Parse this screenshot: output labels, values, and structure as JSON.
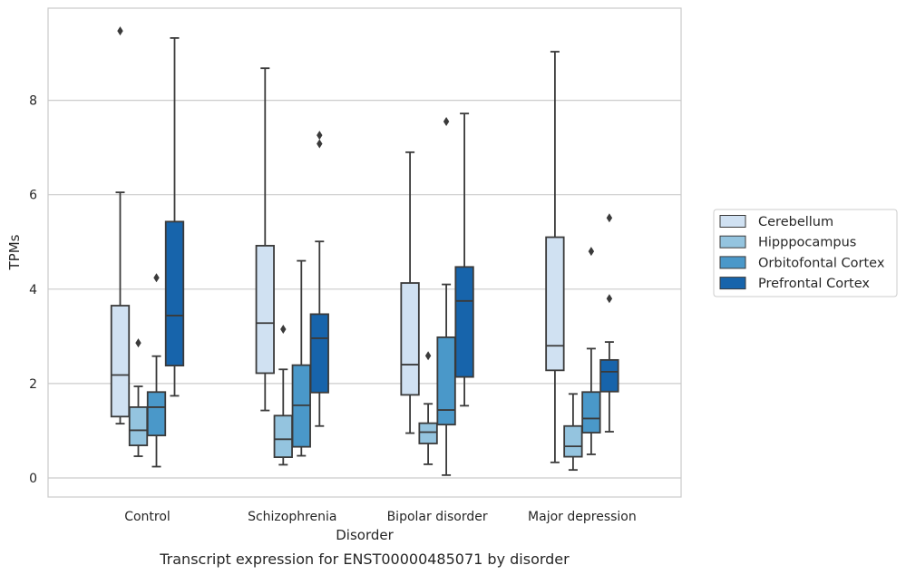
{
  "chart_data": {
    "type": "box",
    "caption": "Transcript expression for ENST00000485071 by disorder",
    "xlabel": "Disorder",
    "ylabel": "TPMs",
    "ylim": [
      -0.4,
      9.9
    ],
    "yticks": [
      0,
      2,
      4,
      6,
      8
    ],
    "grid": "horizontal",
    "legend_position": "right",
    "categories": [
      "Control",
      "Schizophrenia",
      "Bipolar disorder",
      "Major depression"
    ],
    "series": [
      {
        "name": "Cerebellum",
        "color": "#d0e1f2",
        "boxes": [
          {
            "whislo": 1.15,
            "q1": 1.3,
            "med": 2.18,
            "q3": 3.65,
            "whishi": 6.05,
            "fliers": [
              9.47
            ]
          },
          {
            "whislo": 1.43,
            "q1": 2.22,
            "med": 3.28,
            "q3": 4.92,
            "whishi": 8.68,
            "fliers": []
          },
          {
            "whislo": 0.95,
            "q1": 1.76,
            "med": 2.4,
            "q3": 4.13,
            "whishi": 6.9,
            "fliers": []
          },
          {
            "whislo": 0.33,
            "q1": 2.28,
            "med": 2.8,
            "q3": 5.1,
            "whishi": 9.03,
            "fliers": []
          }
        ]
      },
      {
        "name": "Hipppocampus",
        "color": "#94c4df",
        "boxes": [
          {
            "whislo": 0.46,
            "q1": 0.69,
            "med": 1.01,
            "q3": 1.5,
            "whishi": 1.94,
            "fliers": [
              2.86
            ]
          },
          {
            "whislo": 0.28,
            "q1": 0.44,
            "med": 0.82,
            "q3": 1.32,
            "whishi": 2.3,
            "fliers": [
              3.15
            ]
          },
          {
            "whislo": 0.29,
            "q1": 0.73,
            "med": 0.97,
            "q3": 1.16,
            "whishi": 1.57,
            "fliers": [
              2.59
            ]
          },
          {
            "whislo": 0.17,
            "q1": 0.45,
            "med": 0.67,
            "q3": 1.1,
            "whishi": 1.78,
            "fliers": []
          }
        ]
      },
      {
        "name": "Orbitofontal Cortex",
        "color": "#4a98c9",
        "boxes": [
          {
            "whislo": 0.24,
            "q1": 0.9,
            "med": 1.5,
            "q3": 1.82,
            "whishi": 2.58,
            "fliers": [
              4.24
            ]
          },
          {
            "whislo": 0.47,
            "q1": 0.66,
            "med": 1.54,
            "q3": 2.39,
            "whishi": 4.6,
            "fliers": []
          },
          {
            "whislo": 0.06,
            "q1": 1.13,
            "med": 1.44,
            "q3": 2.98,
            "whishi": 4.1,
            "fliers": [
              7.55
            ]
          },
          {
            "whislo": 0.5,
            "q1": 0.96,
            "med": 1.26,
            "q3": 1.82,
            "whishi": 2.74,
            "fliers": [
              4.8
            ]
          }
        ]
      },
      {
        "name": "Prefrontal Cortex",
        "color": "#1764ab",
        "boxes": [
          {
            "whislo": 1.74,
            "q1": 2.38,
            "med": 3.44,
            "q3": 5.43,
            "whishi": 9.32,
            "fliers": []
          },
          {
            "whislo": 1.1,
            "q1": 1.81,
            "med": 2.96,
            "q3": 3.47,
            "whishi": 5.01,
            "fliers": [
              7.08,
              7.26
            ]
          },
          {
            "whislo": 1.53,
            "q1": 2.14,
            "med": 3.75,
            "q3": 4.47,
            "whishi": 7.72,
            "fliers": []
          },
          {
            "whislo": 0.98,
            "q1": 1.83,
            "med": 2.25,
            "q3": 2.5,
            "whishi": 2.88,
            "fliers": [
              3.8,
              5.51
            ]
          }
        ]
      }
    ]
  }
}
